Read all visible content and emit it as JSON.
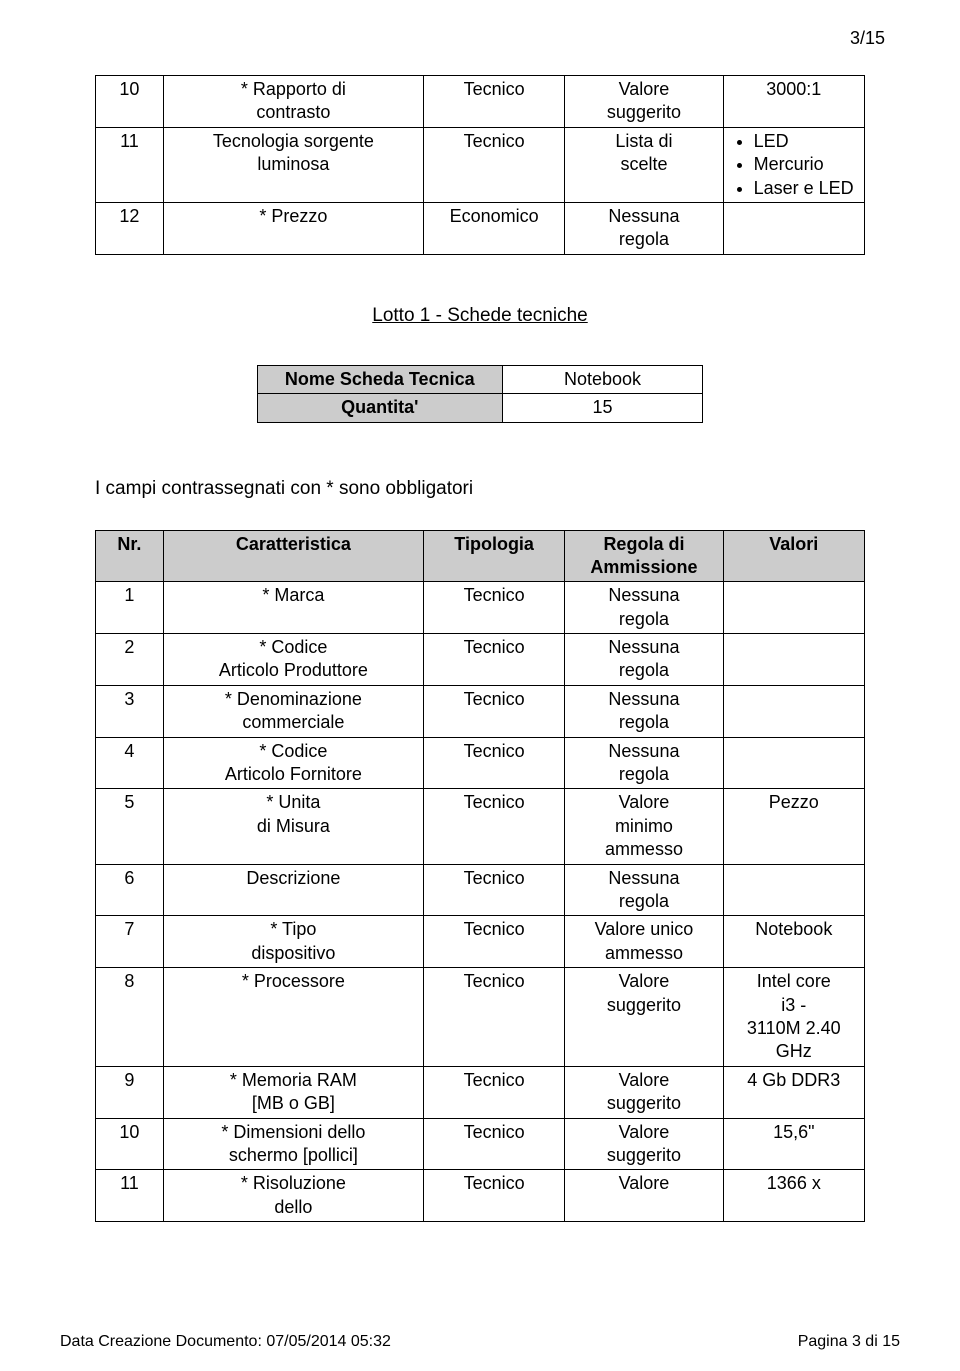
{
  "pageNumTop": "3/15",
  "table1": {
    "rows": [
      {
        "nr": "10",
        "car1": "* Rapporto di",
        "car2": "contrasto",
        "tip": "Tecnico",
        "reg1": "Valore",
        "reg2": "suggerito",
        "val": "3000:1",
        "valIsList": false
      },
      {
        "nr": "11",
        "car1": "Tecnologia sorgente",
        "car2": "luminosa",
        "tip": "Tecnico",
        "reg1": "Lista di",
        "reg2": "scelte",
        "valIsList": true,
        "valList": [
          "LED",
          "Mercurio",
          "Laser e LED"
        ]
      },
      {
        "nr": "12",
        "car1": "* Prezzo",
        "car2": "",
        "tip": "Economico",
        "reg1": "Nessuna",
        "reg2": "regola",
        "val": "",
        "valIsList": false
      }
    ]
  },
  "lottoTitle": "Lotto 1 - Schede tecniche",
  "scheda": {
    "nomeLabel": "Nome Scheda Tecnica",
    "nomeValue": "Notebook",
    "qtyLabel": "Quantita'",
    "qtyValue": "15"
  },
  "campiNote": "I campi contrassegnati con * sono obbligatori",
  "table2": {
    "headers": {
      "nr": "Nr.",
      "car": "Caratteristica",
      "tip": "Tipologia",
      "reg": "Regola di Ammissione",
      "val": "Valori"
    },
    "rows": [
      {
        "nr": "1",
        "car": "* Marca",
        "tip": "Tecnico",
        "reg1": "Nessuna",
        "reg2": "regola",
        "val": ""
      },
      {
        "nr": "2",
        "car": "* Codice Articolo Produttore",
        "tip": "Tecnico",
        "reg1": "Nessuna",
        "reg2": "regola",
        "val": ""
      },
      {
        "nr": "3",
        "car": "* Denominazione commerciale",
        "tip": "Tecnico",
        "reg1": "Nessuna",
        "reg2": "regola",
        "val": ""
      },
      {
        "nr": "4",
        "car": "* Codice Articolo Fornitore",
        "tip": "Tecnico",
        "reg1": "Nessuna",
        "reg2": "regola",
        "val": ""
      },
      {
        "nr": "5",
        "car": "* Unita di Misura",
        "tip": "Tecnico",
        "reg1": "Valore",
        "reg2": "minimo",
        "reg3": "ammesso",
        "val": "Pezzo"
      },
      {
        "nr": "6",
        "car": "Descrizione",
        "tip": "Tecnico",
        "reg1": "Nessuna",
        "reg2": "regola",
        "val": ""
      },
      {
        "nr": "7",
        "car": "* Tipo dispositivo",
        "tip": "Tecnico",
        "reg1": "Valore unico",
        "reg2": "ammesso",
        "val": "Notebook"
      },
      {
        "nr": "8",
        "car": "* Processore",
        "tip": "Tecnico",
        "reg1": "Valore",
        "reg2": "suggerito",
        "val": "Intel core i3 - 3110M 2.40 GHz"
      },
      {
        "nr": "9",
        "car": "* Memoria RAM [MB o GB]",
        "tip": "Tecnico",
        "reg1": "Valore",
        "reg2": "suggerito",
        "val": "4 Gb DDR3"
      },
      {
        "nr": "10",
        "car": "* Dimensioni dello schermo [pollici]",
        "tip": "Tecnico",
        "reg1": "Valore",
        "reg2": "suggerito",
        "val": "15,6\""
      },
      {
        "nr": "11",
        "car": "* Risoluzione dello",
        "tip": "Tecnico",
        "reg1": "Valore",
        "reg2": "",
        "val": "1366 x"
      }
    ]
  },
  "footer": {
    "left": "Data Creazione Documento: 07/05/2014 05:32",
    "right": "Pagina 3 di 15"
  }
}
